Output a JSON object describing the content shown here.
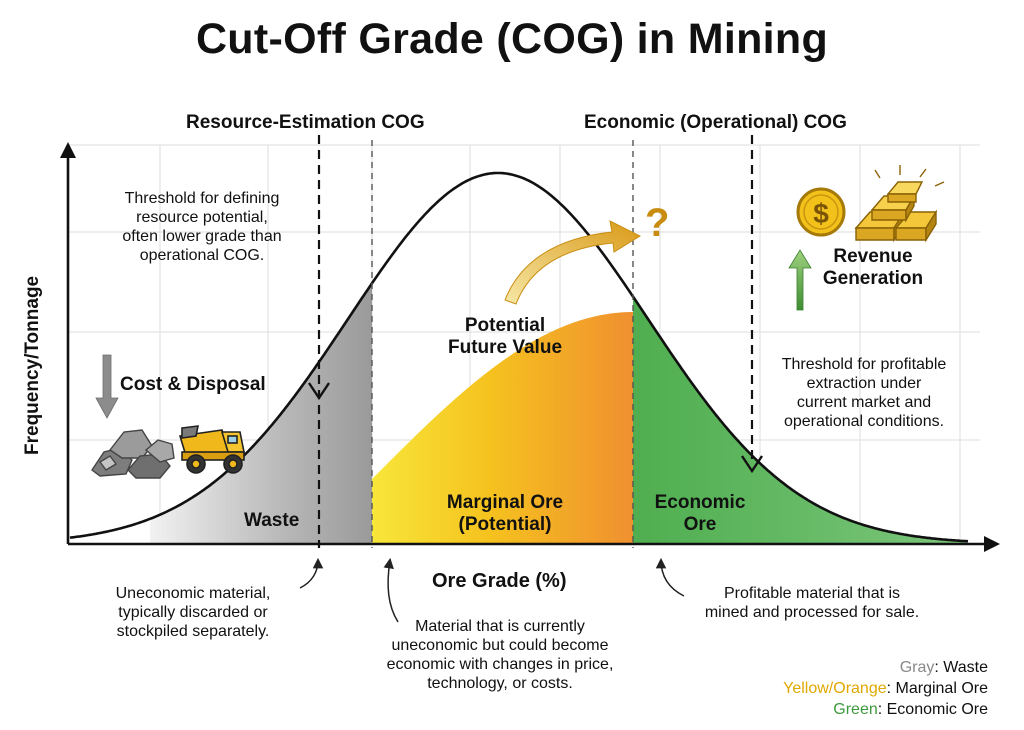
{
  "title": "Cut-Off Grade (COG) in Mining",
  "headers": {
    "resource_cog": "Resource-Estimation COG",
    "economic_cog": "Economic (Operational) COG"
  },
  "axes": {
    "ylabel": "Frequency/Tonnage",
    "xlabel": "Ore Grade (%)"
  },
  "notes": {
    "resource_threshold": [
      "Threshold for defining",
      "resource potential,",
      "often lower grade than",
      "operational COG."
    ],
    "economic_threshold": [
      "Threshold for profitable",
      "extraction under",
      "current market and",
      "operational conditions."
    ],
    "cost_disposal": "Cost & Disposal",
    "revenue": [
      "Revenue",
      "Generation"
    ],
    "potential_future_value": [
      "Potential",
      "Future Value"
    ]
  },
  "zones": {
    "waste": "Waste",
    "marginal": [
      "Marginal Ore",
      "(Potential)"
    ],
    "economic": [
      "Economic",
      "Ore"
    ]
  },
  "annotations": {
    "waste_desc": [
      "Uneconomic material,",
      "typically discarded or",
      "stockpiled separately."
    ],
    "marginal_desc": [
      "Material that is currently",
      "uneconomic but could become",
      "economic with changes in price,",
      "technology, or costs."
    ],
    "economic_desc": [
      "Profitable material that is",
      "mined and processed for sale."
    ]
  },
  "legend": [
    {
      "key": "Gray",
      "sep": ": ",
      "label": "Waste",
      "color": "#8a8a8a"
    },
    {
      "key": "Yellow/Orange",
      "sep": ": ",
      "label": "Marginal Ore",
      "color": "#e0a800"
    },
    {
      "key": "Green",
      "sep": ": ",
      "label": "Economic Ore",
      "color": "#3e9a3e"
    }
  ],
  "icons": {
    "question": "?",
    "dollar": "$"
  },
  "colors": {
    "waste": "#9a9a9a",
    "marginal_start": "#f7e02a",
    "marginal_end": "#f0902a",
    "economic": "#5cb65c",
    "arrow_gold": "#d9a520",
    "arrow_green": "#4c9a3c"
  }
}
